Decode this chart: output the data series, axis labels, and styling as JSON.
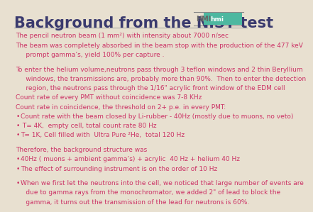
{
  "title": "Background from the NIST test",
  "title_color": "#3a3a6e",
  "title_fontsize": 15,
  "bg_color": "#e8e0d0",
  "text_color": "#cc3366",
  "body_lines": [
    {
      "text": "The pencil neutron beam (1 mm²) with intensity about 7000 n/sec",
      "bullet": false
    },
    {
      "text": "The beam was completely absorbed in the beam stop with the production of the 477 keV",
      "bullet": false
    },
    {
      "text": "     prompt gamma’s, yield 100% per capture .",
      "bullet": false
    },
    {
      "text": "",
      "bullet": false
    },
    {
      "text": "To enter the helium volume,neutrons pass through 3 teflon windows and 2 thin Beryllium",
      "bullet": false
    },
    {
      "text": "     windows, the transmissions are, probably more than 90%.  Then to enter the detection",
      "bullet": false
    },
    {
      "text": "     region, the neutrons pass through the 1/16\" acrylic front window of the EDM cell",
      "bullet": false
    },
    {
      "text": "Count rate of every PMT without coincidence was 7-8 KHz",
      "bullet": false
    },
    {
      "text": "Count rate in coincidence, the threshold on 2+ p.e. in every PMT:",
      "bullet": false
    },
    {
      "text": "Count rate with the beam closed by Li-rubber - 40Hz (mostly due to muons, no veto)",
      "bullet": true
    },
    {
      "text": " T= 4K,  empty cell, total count rate 80 Hz",
      "bullet": true
    },
    {
      "text": "T= 1K, Cell filled with  Ultra Pure ²He,  total 120 Hz",
      "bullet": true
    },
    {
      "text": "",
      "bullet": false
    },
    {
      "text": "Therefore, the background structure was",
      "bullet": false
    },
    {
      "text": "40Hz ( muons + ambient gamma’s) + acrylic  40 Hz + helium 40 Hz",
      "bullet": true
    },
    {
      "text": "The effect of surrounding instrument is on the order of 10 Hz",
      "bullet": true
    },
    {
      "text": "",
      "bullet": false
    },
    {
      "text": "When we first let the neutrons into the cell, we noticed that large number of events are",
      "bullet": true
    },
    {
      "text": "     due to gamma rays from the monochromator, we added 2\" of lead to block the",
      "bullet": false
    },
    {
      "text": "     gamma, it turns out the transmission of the lead for neutrons is 60%.",
      "bullet": false
    }
  ],
  "hmi_box_color": "#4db8a0",
  "hmi_text": "HMI",
  "hmi_subtext": "hmi",
  "separator_color": "#aaaaaa",
  "logo_line_color": "#888888"
}
